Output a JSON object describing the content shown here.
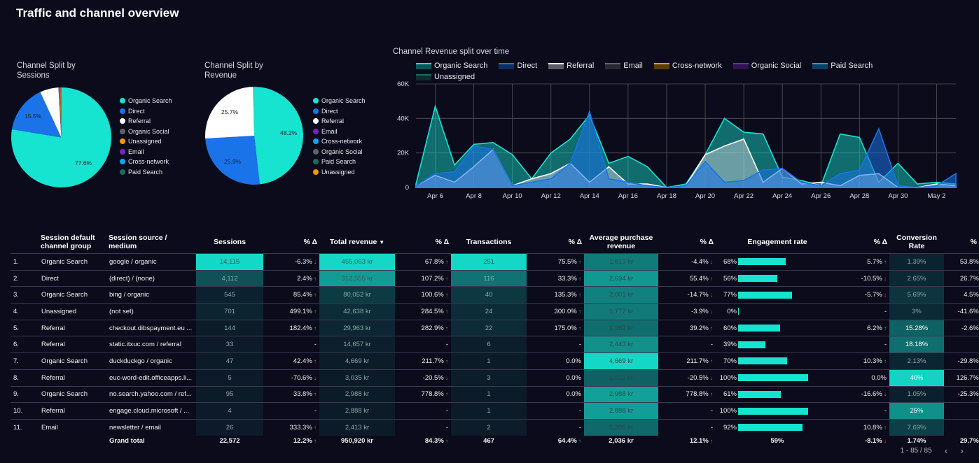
{
  "page": {
    "title": "Traffic and channel overview"
  },
  "colors": {
    "organic_search": "#16e3d0",
    "direct": "#1a73e8",
    "referral": "#ffffff",
    "organic_social": "#5f6368",
    "unassigned": "#f29900",
    "email": "#7627bb",
    "cross_network": "#12a4f3",
    "paid_search": "#1e6b5c"
  },
  "pie_sessions": {
    "title_line1": "Channel Split by",
    "title_line2": "Sessions",
    "label_big": "77.6%",
    "label_direct": "15.5%",
    "legend": [
      "Organic Search",
      "Direct",
      "Referral",
      "Organic Social",
      "Unassigned",
      "Email",
      "Cross-network",
      "Paid Search"
    ]
  },
  "pie_revenue": {
    "title_line1": "Channel Split by",
    "title_line2": "Revenue",
    "label_big": "48.2%",
    "label_direct": "25.9%",
    "label_ref": "25.7%",
    "legend": [
      "Organic Search",
      "Direct",
      "Referral",
      "Email",
      "Cross-network",
      "Organic Social",
      "Paid Search",
      "Unassigned"
    ]
  },
  "chart_data": [
    {
      "type": "pie",
      "title": "Channel Split by Sessions",
      "labels": [
        "Organic Search",
        "Direct",
        "Referral",
        "Organic Social",
        "Unassigned",
        "Email",
        "Cross-network",
        "Paid Search"
      ],
      "values": [
        77.6,
        15.5,
        6.0,
        0.5,
        0.2,
        0.1,
        0.05,
        0.05
      ]
    },
    {
      "type": "pie",
      "title": "Channel Split by Revenue",
      "labels": [
        "Organic Search",
        "Direct",
        "Referral",
        "Email",
        "Cross-network",
        "Organic Social",
        "Paid Search",
        "Unassigned"
      ],
      "values": [
        48.2,
        25.9,
        25.7,
        0.1,
        0.05,
        0.02,
        0.02,
        0.01
      ]
    },
    {
      "type": "area",
      "title": "Channel Revenue split over time",
      "x": [
        "Apr 5",
        "Apr 6",
        "Apr 7",
        "Apr 8",
        "Apr 9",
        "Apr 10",
        "Apr 11",
        "Apr 12",
        "Apr 13",
        "Apr 14",
        "Apr 15",
        "Apr 16",
        "Apr 17",
        "Apr 18",
        "Apr 19",
        "Apr 20",
        "Apr 21",
        "Apr 22",
        "Apr 23",
        "Apr 24",
        "Apr 25",
        "Apr 26",
        "Apr 27",
        "Apr 28",
        "Apr 29",
        "Apr 30",
        "May 1",
        "May 2",
        "May 3"
      ],
      "xticks": [
        "Apr 6",
        "Apr 8",
        "Apr 10",
        "Apr 12",
        "Apr 14",
        "Apr 16",
        "Apr 18",
        "Apr 20",
        "Apr 22",
        "Apr 24",
        "Apr 26",
        "Apr 28",
        "Apr 30",
        "May 2"
      ],
      "yticks": [
        "0",
        "20K",
        "40K",
        "60K"
      ],
      "ylim": [
        0,
        60000
      ],
      "series": [
        {
          "name": "Organic Search",
          "color": "#16e3d0",
          "values": [
            2000,
            47000,
            13000,
            25000,
            26000,
            19000,
            5000,
            20000,
            28000,
            42000,
            14000,
            18000,
            12000,
            0,
            2000,
            19000,
            40000,
            32000,
            31000,
            6000,
            4000,
            1000,
            31000,
            29000,
            3000,
            14000,
            2000,
            3000,
            2000
          ]
        },
        {
          "name": "Direct",
          "color": "#1a73e8",
          "values": [
            1000,
            8000,
            9000,
            24000,
            22000,
            1000,
            3000,
            5000,
            14000,
            44000,
            5000,
            3000,
            1000,
            0,
            1000,
            15000,
            3000,
            4000,
            10000,
            11000,
            3000,
            1000,
            8000,
            10000,
            34000,
            1000,
            0,
            1000,
            8000
          ]
        },
        {
          "name": "Referral",
          "color": "#ffffff",
          "values": [
            1000,
            7000,
            3000,
            12000,
            22000,
            1000,
            5000,
            8000,
            14000,
            3000,
            12000,
            2000,
            2000,
            0,
            1000,
            19000,
            24000,
            28000,
            3000,
            11000,
            2000,
            3000,
            1000,
            7000,
            8000,
            0,
            0,
            2000,
            1000
          ]
        },
        {
          "name": "Email",
          "color": "#5f6368",
          "values": [
            0,
            0,
            0,
            0,
            0,
            0,
            0,
            0,
            0,
            0,
            0,
            0,
            0,
            0,
            0,
            0,
            0,
            0,
            0,
            0,
            0,
            0,
            2000,
            0,
            0,
            0,
            0,
            0,
            0
          ]
        },
        {
          "name": "Cross-network",
          "color": "#f29900",
          "values": [
            0,
            0,
            0,
            0,
            0,
            0,
            0,
            0,
            0,
            0,
            0,
            0,
            0,
            0,
            0,
            0,
            0,
            0,
            0,
            0,
            0,
            0,
            0,
            0,
            0,
            0,
            0,
            0,
            0
          ]
        },
        {
          "name": "Organic Social",
          "color": "#7627bb",
          "values": [
            0,
            0,
            0,
            0,
            0,
            0,
            0,
            0,
            0,
            0,
            0,
            0,
            0,
            0,
            0,
            0,
            0,
            0,
            0,
            0,
            0,
            0,
            0,
            0,
            0,
            0,
            0,
            0,
            0
          ]
        },
        {
          "name": "Paid Search",
          "color": "#12a4f3",
          "values": [
            0,
            0,
            0,
            0,
            0,
            0,
            0,
            0,
            0,
            0,
            0,
            0,
            0,
            0,
            0,
            0,
            0,
            0,
            0,
            0,
            0,
            0,
            0,
            0,
            0,
            0,
            0,
            0,
            0
          ]
        },
        {
          "name": "Unassigned",
          "color": "#1e6b5c",
          "values": [
            0,
            0,
            0,
            0,
            0,
            0,
            0,
            0,
            0,
            0,
            0,
            0,
            0,
            0,
            0,
            0,
            0,
            0,
            0,
            0,
            0,
            0,
            0,
            0,
            0,
            0,
            0,
            0,
            0
          ]
        }
      ]
    }
  ],
  "line_chart": {
    "title": "Channel Revenue split over time"
  },
  "table": {
    "headers": {
      "channel": "Session default channel group",
      "source": "Session source / medium",
      "sessions": "Sessions",
      "d1": "% Δ",
      "revenue": "Total revenue",
      "d2": "% Δ",
      "transactions": "Transactions",
      "d3": "% Δ",
      "apr": "Average purchase revenue",
      "d4": "% Δ",
      "eng": "Engagement rate",
      "d5": "% Δ",
      "conv": "Conversion Rate",
      "d6": "% Δ"
    },
    "sort_icon": "▼",
    "rows": [
      {
        "n": "1.",
        "ch": "Organic Search",
        "src": "google / organic",
        "ses": "14,115",
        "d1": "-6.3%",
        "d1u": false,
        "rev": "455,063 kr",
        "d2": "67.8%",
        "d2u": true,
        "tr": "251",
        "d3": "75.5%",
        "d3u": true,
        "apr": "1,813 kr",
        "d4": "-4.4%",
        "d4u": false,
        "eng": "68%",
        "engv": 68,
        "d5": "5.7%",
        "d5u": true,
        "conv": "1.39%",
        "d6": "53.8%",
        "d6u": true
      },
      {
        "n": "2.",
        "ch": "Direct",
        "src": "(direct) / (none)",
        "ses": "4,112",
        "d1": "2.4%",
        "d1u": true,
        "rev": "312,555 kr",
        "d2": "107.2%",
        "d2u": true,
        "tr": "116",
        "d3": "33.3%",
        "d3u": true,
        "apr": "2,694 kr",
        "d4": "55.4%",
        "d4u": true,
        "eng": "56%",
        "engv": 56,
        "d5": "-10.5%",
        "d5u": false,
        "conv": "2.65%",
        "d6": "26.7%",
        "d6u": true
      },
      {
        "n": "3.",
        "ch": "Organic Search",
        "src": "bing / organic",
        "ses": "545",
        "d1": "85.4%",
        "d1u": true,
        "rev": "80,052 kr",
        "d2": "100.6%",
        "d2u": true,
        "tr": "40",
        "d3": "135.3%",
        "d3u": true,
        "apr": "2,001 kr",
        "d4": "-14.7%",
        "d4u": false,
        "eng": "77%",
        "engv": 77,
        "d5": "-5.7%",
        "d5u": false,
        "conv": "5.69%",
        "d6": "4.5%",
        "d6u": true
      },
      {
        "n": "4.",
        "ch": "Unassigned",
        "src": "(not set)",
        "ses": "701",
        "d1": "499.1%",
        "d1u": true,
        "rev": "42,638 kr",
        "d2": "284.5%",
        "d2u": true,
        "tr": "24",
        "d3": "300.0%",
        "d3u": true,
        "apr": "1,777 kr",
        "d4": "-3.9%",
        "d4u": false,
        "eng": "0%",
        "engv": 0,
        "d5": "-",
        "d5u": null,
        "conv": "3%",
        "d6": "-41.6%",
        "d6u": false
      },
      {
        "n": "5.",
        "ch": "Referral",
        "src": "checkout.dibspayment.eu ...",
        "ses": "144",
        "d1": "182.4%",
        "d1u": true,
        "rev": "29,963 kr",
        "d2": "282.9%",
        "d2u": true,
        "tr": "22",
        "d3": "175.0%",
        "d3u": true,
        "apr": "1,362 kr",
        "d4": "39.2%",
        "d4u": true,
        "eng": "60%",
        "engv": 60,
        "d5": "6.2%",
        "d5u": true,
        "conv": "15.28%",
        "d6": "-2.6%",
        "d6u": false
      },
      {
        "n": "6.",
        "ch": "Referral",
        "src": "static.itxuc.com / referral",
        "ses": "33",
        "d1": "-",
        "d1u": null,
        "rev": "14,657 kr",
        "d2": "-",
        "d2u": null,
        "tr": "6",
        "d3": "-",
        "d3u": null,
        "apr": "2,443 kr",
        "d4": "-",
        "d4u": null,
        "eng": "39%",
        "engv": 39,
        "d5": "-",
        "d5u": null,
        "conv": "18.18%",
        "d6": "-",
        "d6u": null
      },
      {
        "n": "7.",
        "ch": "Organic Search",
        "src": "duckduckgo / organic",
        "ses": "47",
        "d1": "42.4%",
        "d1u": true,
        "rev": "4,669 kr",
        "d2": "211.7%",
        "d2u": true,
        "tr": "1",
        "d3": "0.0%",
        "d3u": null,
        "apr": "4,669 kr",
        "d4": "211.7%",
        "d4u": true,
        "eng": "70%",
        "engv": 70,
        "d5": "10.3%",
        "d5u": true,
        "conv": "2.13%",
        "d6": "-29.8%",
        "d6u": false
      },
      {
        "n": "8.",
        "ch": "Referral",
        "src": "euc-word-edit.officeapps.li...",
        "ses": "5",
        "d1": "-70.6%",
        "d1u": false,
        "rev": "3,035 kr",
        "d2": "-20.5%",
        "d2u": false,
        "tr": "3",
        "d3": "0.0%",
        "d3u": null,
        "apr": "1,012 kr",
        "d4": "-20.5%",
        "d4u": false,
        "eng": "100%",
        "engv": 100,
        "d5": "0.0%",
        "d5u": null,
        "conv": "40%",
        "d6": "126.7%",
        "d6u": true
      },
      {
        "n": "9.",
        "ch": "Organic Search",
        "src": "no.search.yahoo.com / ref...",
        "ses": "95",
        "d1": "33.8%",
        "d1u": true,
        "rev": "2,988 kr",
        "d2": "778.8%",
        "d2u": true,
        "tr": "1",
        "d3": "0.0%",
        "d3u": null,
        "apr": "2,988 kr",
        "d4": "778.8%",
        "d4u": true,
        "eng": "61%",
        "engv": 61,
        "d5": "-16.6%",
        "d5u": false,
        "conv": "1.05%",
        "d6": "-25.3%",
        "d6u": false
      },
      {
        "n": "10.",
        "ch": "Referral",
        "src": "engage.cloud.microsoft / ...",
        "ses": "4",
        "d1": "-",
        "d1u": null,
        "rev": "2,888 kr",
        "d2": "-",
        "d2u": null,
        "tr": "1",
        "d3": "-",
        "d3u": null,
        "apr": "2,888 kr",
        "d4": "-",
        "d4u": null,
        "eng": "100%",
        "engv": 100,
        "d5": "-",
        "d5u": null,
        "conv": "25%",
        "d6": "-",
        "d6u": null
      },
      {
        "n": "11.",
        "ch": "Email",
        "src": "newsletter / email",
        "ses": "26",
        "d1": "333.3%",
        "d1u": true,
        "rev": "2,413 kr",
        "d2": "-",
        "d2u": null,
        "tr": "2",
        "d3": "-",
        "d3u": null,
        "apr": "1,206 kr",
        "d4": "-",
        "d4u": null,
        "eng": "92%",
        "engv": 92,
        "d5": "10.8%",
        "d5u": true,
        "conv": "7.69%",
        "d6": "-",
        "d6u": null
      }
    ],
    "total": {
      "label": "Grand total",
      "ses": "22,572",
      "d1": "12.2%",
      "d1u": true,
      "rev": "950,920 kr",
      "d2": "84.3%",
      "d2u": true,
      "tr": "467",
      "d3": "64.4%",
      "d3u": true,
      "apr": "2,036 kr",
      "d4": "12.1%",
      "d4u": true,
      "eng": "59%",
      "d5": "-8.1%",
      "d5u": false,
      "conv": "1.74%",
      "d6": "29.7%",
      "d6u": true
    }
  },
  "pager": {
    "text": "1 - 85 / 85",
    "prev": "‹",
    "next": "›"
  }
}
